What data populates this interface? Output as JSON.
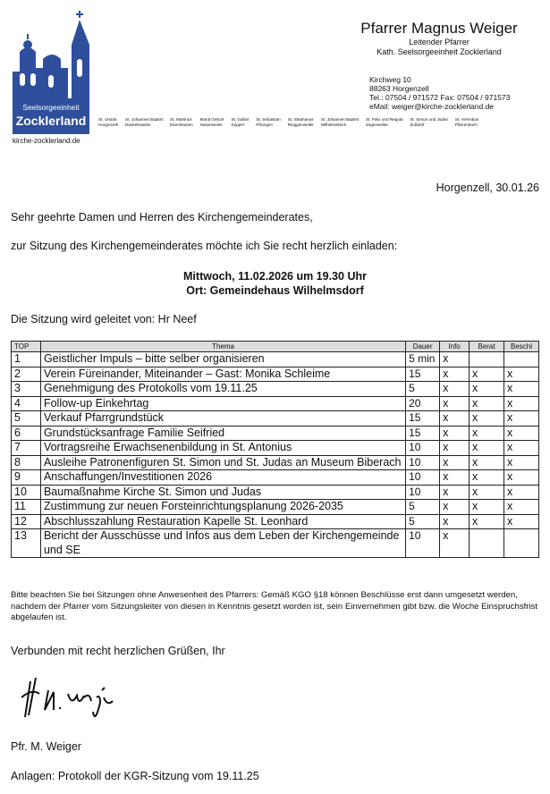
{
  "header": {
    "logo": {
      "line1": "Seelsorgeeinheit",
      "line2": "Zocklerland",
      "website": "kirche-zocklerland.de"
    },
    "sender": {
      "name": "Pfarrer Magnus Weiger",
      "role": "Leitender Pfarrer",
      "unit": "Kath. Seelsorgeeinheit Zocklerland",
      "street": "Kirchweg 10",
      "city": "88263 Horgenzell",
      "phone": "Tel.: 07504 / 971572 Fax: 07504 / 971573",
      "email": "eMail: weiger@kirche-zocklerland.de"
    },
    "parishes": [
      [
        "St. Ursula",
        "Horgenzell"
      ],
      [
        "St. Johannes Baptist",
        "Dankelsweiler"
      ],
      [
        "St. Martinus",
        "Esenhausen"
      ],
      [
        "Mariä Geburt",
        "Hasenweiler"
      ],
      [
        "St. Gallus",
        "Kappel"
      ],
      [
        "St. Sebastian",
        "Pfrungen"
      ],
      [
        "St. Stephanus",
        "Ringgenweiler"
      ],
      [
        "St. Johannes Baptist",
        "Wilhelmskirch"
      ],
      [
        "St. Felix und Regula",
        "Zogenweiler"
      ],
      [
        "St. Simon und Judas",
        "Zußdorf"
      ],
      [
        "St. Verenbus",
        "Pfärrenbach"
      ]
    ]
  },
  "date": "Horgenzell, 30.01.26",
  "salutation": "Sehr geehrte Damen und Herren des Kirchengemeinderates,",
  "intro": "zur Sitzung des Kirchengemeinderates möchte ich Sie recht herzlich einladen:",
  "meeting": {
    "when": "Mittwoch, 11.02.2026 um 19.30 Uhr",
    "where": "Ort: Gemeindehaus Wilhelmsdorf"
  },
  "leader": "Die Sitzung wird geleitet von: Hr Neef",
  "table": {
    "header": [
      "TOP",
      "Thema",
      "Dauer",
      "Info",
      "Berat",
      "Beschl"
    ],
    "rows": [
      [
        "1",
        "Geistlicher Impuls – bitte selber organisieren",
        "5 min",
        "x",
        null,
        null
      ],
      [
        "2",
        "Verein Füreinander, Miteinander – Gast: Monika Schleime",
        "15",
        "x",
        "x",
        "x"
      ],
      [
        "3",
        "Genehmigung des Protokolls vom 19.11.25",
        "5",
        "x",
        "x",
        "x"
      ],
      [
        "4",
        "Follow-up Einkehrtag",
        "20",
        "x",
        "x",
        "x"
      ],
      [
        "5",
        "Verkauf Pfarrgrundstück",
        "15",
        "x",
        "x",
        "x"
      ],
      [
        "6",
        "Grundstücksanfrage Familie Seifried",
        "15",
        "x",
        "x",
        "x"
      ],
      [
        "7",
        "Vortragsreihe Erwachsenenbildung in St. Antonius",
        "10",
        "x",
        "x",
        "x"
      ],
      [
        "8",
        "Ausleihe Patronenfiguren St. Simon und St. Judas an Museum Biberach",
        "10",
        "x",
        "x",
        "x"
      ],
      [
        "9",
        "Anschaffungen/Investitionen 2026",
        "10",
        "x",
        "x",
        "x"
      ],
      [
        "10",
        "Baumaßnahme Kirche St. Simon und Judas",
        "10",
        "x",
        "x",
        "x"
      ],
      [
        "11",
        "Zustimmung zur neuen Forsteinrichtungsplanung 2026-2035",
        "5",
        "x",
        "x",
        "x"
      ],
      [
        "12",
        "Abschlusszahlung Restauration Kapelle St. Leonhard",
        "5",
        "x",
        "x",
        "x"
      ],
      [
        "13",
        "Bericht der Ausschüsse und Infos aus dem Leben der Kirchengemeinde und SE",
        "10",
        "x",
        null,
        null
      ]
    ]
  },
  "note": "Bitte beachten Sie bei Sitzungen ohne Anwesenheit des Pfarrers: Gemäß KGO §18 können Beschlüsse erst dann umgesetzt werden, nachdem der Pfarrer vom Sitzungsleiter von diesen in Kenntnis gesetzt worden ist, sein Einvernehmen gibt bzw. die Woche Einspruchsfrist abgelaufen ist.",
  "closing": "Verbunden mit recht herzlichen Grüßen, Ihr",
  "signer": "Pfr. M. Weiger",
  "attachments": "Anlagen: Protokoll der KGR-Sitzung vom 19.11.25"
}
